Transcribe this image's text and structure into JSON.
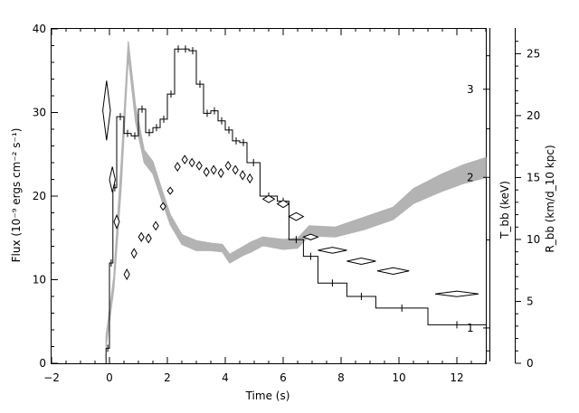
{
  "chart_data": {
    "type": "line",
    "title": "",
    "xlabel": "Time (s)",
    "xlim": [
      -2,
      13
    ],
    "x_ticks": [
      -2,
      0,
      2,
      4,
      6,
      8,
      10,
      12
    ],
    "x_tick_labels": [
      "−2",
      "0",
      "2",
      "4",
      "6",
      "8",
      "10",
      "12"
    ],
    "ylabel_left": "Flux (10⁻⁹ ergs cm⁻² s⁻¹)",
    "ylim_left": [
      0,
      40
    ],
    "y_ticks_left": [
      0,
      10,
      20,
      30,
      40
    ],
    "y_tick_labels_left": [
      "0",
      "10",
      "20",
      "30",
      "40"
    ],
    "ylabel_tbb": "T_bb (keV)",
    "tbb_scale": "log",
    "tbb_range": [
      0.85,
      3.96
    ],
    "tbb_ticks": [
      1,
      2,
      3
    ],
    "tbb_tick_labels": [
      "1",
      "2",
      "3"
    ],
    "ylabel_rbb": "R_bb (km/d_10 kpc)",
    "rbb_lim": [
      0,
      27
    ],
    "rbb_ticks": [
      0,
      5,
      10,
      15,
      20,
      25
    ],
    "rbb_tick_labels": [
      "0",
      "5",
      "10",
      "15",
      "20",
      "25"
    ],
    "legend": "none",
    "grid": false,
    "flux_histogram": {
      "name": "",
      "color": "#000000",
      "bins": [
        [
          -0.12,
          0.0,
          1.8
        ],
        [
          0.0,
          0.12,
          12.0
        ],
        [
          0.12,
          0.25,
          21.0
        ],
        [
          0.25,
          0.5,
          29.5
        ],
        [
          0.5,
          0.75,
          27.5
        ],
        [
          0.75,
          1.0,
          27.2
        ],
        [
          1.0,
          1.25,
          30.4
        ],
        [
          1.25,
          1.5,
          27.6
        ],
        [
          1.5,
          1.75,
          28.2
        ],
        [
          1.75,
          2.0,
          29.2
        ],
        [
          2.0,
          2.25,
          32.2
        ],
        [
          2.25,
          2.5,
          37.6
        ],
        [
          2.5,
          2.75,
          37.6
        ],
        [
          2.75,
          3.0,
          37.4
        ],
        [
          3.0,
          3.25,
          33.4
        ],
        [
          3.25,
          3.5,
          29.9
        ],
        [
          3.5,
          3.75,
          30.2
        ],
        [
          3.75,
          4.0,
          29.0
        ],
        [
          4.0,
          4.25,
          27.9
        ],
        [
          4.25,
          4.5,
          26.6
        ],
        [
          4.5,
          4.75,
          26.4
        ],
        [
          4.75,
          5.2,
          24.0
        ],
        [
          5.2,
          5.8,
          20.0
        ],
        [
          5.8,
          6.2,
          19.4
        ],
        [
          6.2,
          6.7,
          14.8
        ],
        [
          6.7,
          7.2,
          12.8
        ],
        [
          7.2,
          8.2,
          9.6
        ],
        [
          8.2,
          9.2,
          8.0
        ],
        [
          9.2,
          11.0,
          6.6
        ],
        [
          11.0,
          13.0,
          4.6
        ]
      ]
    },
    "temperature_kev": {
      "name": "",
      "marker": "diamond",
      "points": [
        [
          -0.1,
          2.72,
          0.13,
          0.4
        ],
        [
          0.1,
          1.98,
          0.1,
          0.12
        ],
        [
          0.25,
          1.63,
          0.08,
          0.05
        ],
        [
          0.6,
          1.28,
          0.06,
          0.03
        ],
        [
          0.85,
          1.41,
          0.07,
          0.03
        ],
        [
          1.1,
          1.52,
          0.08,
          0.03
        ],
        [
          1.35,
          1.51,
          0.08,
          0.03
        ],
        [
          1.6,
          1.6,
          0.08,
          0.03
        ],
        [
          1.85,
          1.75,
          0.08,
          0.03
        ],
        [
          2.1,
          1.88,
          0.08,
          0.03
        ],
        [
          2.35,
          2.1,
          0.08,
          0.04
        ],
        [
          2.6,
          2.17,
          0.08,
          0.04
        ],
        [
          2.85,
          2.14,
          0.08,
          0.04
        ],
        [
          3.1,
          2.11,
          0.08,
          0.04
        ],
        [
          3.35,
          2.05,
          0.08,
          0.04
        ],
        [
          3.6,
          2.07,
          0.08,
          0.04
        ],
        [
          3.85,
          2.04,
          0.08,
          0.04
        ],
        [
          4.1,
          2.11,
          0.08,
          0.04
        ],
        [
          4.35,
          2.07,
          0.08,
          0.04
        ],
        [
          4.6,
          2.02,
          0.08,
          0.04
        ],
        [
          4.85,
          1.99,
          0.08,
          0.04
        ],
        [
          5.5,
          1.81,
          0.2,
          0.03
        ],
        [
          6.0,
          1.77,
          0.2,
          0.03
        ],
        [
          6.45,
          1.67,
          0.25,
          0.03
        ],
        [
          6.95,
          1.52,
          0.25,
          0.02
        ],
        [
          7.7,
          1.43,
          0.5,
          0.02
        ],
        [
          8.7,
          1.36,
          0.5,
          0.02
        ],
        [
          9.8,
          1.3,
          0.55,
          0.02
        ],
        [
          12.0,
          1.17,
          0.75,
          0.015
        ]
      ]
    },
    "radius_band": {
      "name": "",
      "color": "#b3b3b3",
      "points": [
        [
          -0.12,
          1.3,
          2.2
        ],
        [
          0.15,
          6.0,
          7.0
        ],
        [
          0.4,
          14.0,
          16.0
        ],
        [
          0.65,
          24.8,
          26.0
        ],
        [
          0.9,
          19.5,
          20.8
        ],
        [
          1.2,
          16.2,
          17.2
        ],
        [
          1.5,
          15.3,
          16.3
        ],
        [
          1.8,
          13.2,
          14.1
        ],
        [
          2.1,
          11.2,
          12.0
        ],
        [
          2.5,
          9.6,
          10.4
        ],
        [
          3.0,
          9.1,
          9.9
        ],
        [
          3.5,
          9.1,
          9.7
        ],
        [
          3.9,
          9.0,
          9.6
        ],
        [
          4.15,
          8.1,
          8.8
        ],
        [
          4.6,
          8.7,
          9.4
        ],
        [
          4.9,
          9.0,
          9.8
        ],
        [
          5.3,
          9.5,
          10.2
        ],
        [
          6.0,
          9.2,
          10.0
        ],
        [
          6.5,
          9.3,
          10.1
        ],
        [
          6.9,
          10.3,
          11.1
        ],
        [
          7.8,
          10.2,
          11.0
        ],
        [
          8.8,
          10.8,
          11.8
        ],
        [
          9.8,
          11.6,
          12.6
        ],
        [
          10.5,
          12.9,
          14.1
        ],
        [
          11.5,
          13.9,
          15.3
        ],
        [
          12.2,
          14.5,
          16.0
        ],
        [
          13.0,
          15.0,
          16.6
        ]
      ]
    }
  }
}
